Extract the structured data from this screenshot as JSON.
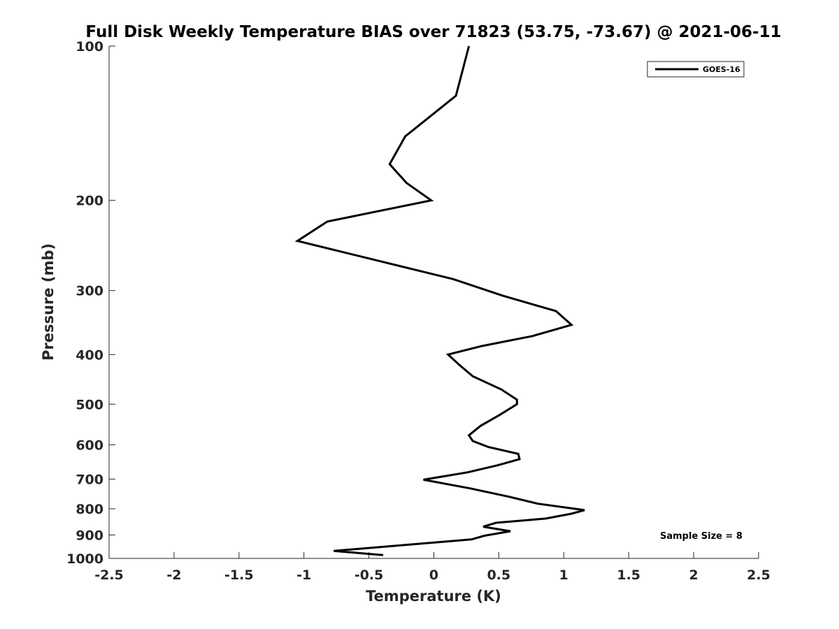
{
  "chart_data": {
    "type": "line",
    "title": "Full Disk Weekly Temperature BIAS over 71823 (53.75, -73.67) @ 2021-06-11",
    "xlabel": "Temperature (K)",
    "ylabel": "Pressure (mb)",
    "xlim": [
      -2.5,
      2.5
    ],
    "ylim": [
      100,
      1000
    ],
    "yscale": "log",
    "y_reversed": true,
    "x_ticks": [
      -2.5,
      -2,
      -1.5,
      -1,
      -0.5,
      0,
      0.5,
      1,
      1.5,
      2,
      2.5
    ],
    "x_tick_labels": [
      "-2.5",
      "-2",
      "-1.5",
      "-1",
      "-0.5",
      "0",
      "0.5",
      "1",
      "1.5",
      "2",
      "2.5"
    ],
    "y_ticks": [
      100,
      200,
      300,
      400,
      500,
      600,
      700,
      800,
      900,
      1000
    ],
    "y_tick_labels": [
      "100",
      "200",
      "300",
      "400",
      "500",
      "600",
      "700",
      "800",
      "900",
      "1000"
    ],
    "grid": false,
    "legend_position": "top-right",
    "series": [
      {
        "name": "GOES-16",
        "color": "#000000",
        "points": [
          {
            "x": 0.27,
            "y": 100
          },
          {
            "x": 0.17,
            "y": 125
          },
          {
            "x": -0.22,
            "y": 150
          },
          {
            "x": -0.34,
            "y": 170
          },
          {
            "x": -0.21,
            "y": 185
          },
          {
            "x": -0.02,
            "y": 200
          },
          {
            "x": -0.82,
            "y": 220
          },
          {
            "x": -1.05,
            "y": 240
          },
          {
            "x": -0.36,
            "y": 265
          },
          {
            "x": 0.15,
            "y": 285
          },
          {
            "x": 0.53,
            "y": 307
          },
          {
            "x": 0.94,
            "y": 329
          },
          {
            "x": 1.06,
            "y": 350
          },
          {
            "x": 0.76,
            "y": 368
          },
          {
            "x": 0.37,
            "y": 385
          },
          {
            "x": 0.11,
            "y": 400
          },
          {
            "x": 0.2,
            "y": 420
          },
          {
            "x": 0.3,
            "y": 441
          },
          {
            "x": 0.52,
            "y": 468
          },
          {
            "x": 0.64,
            "y": 490
          },
          {
            "x": 0.64,
            "y": 500
          },
          {
            "x": 0.51,
            "y": 524
          },
          {
            "x": 0.36,
            "y": 551
          },
          {
            "x": 0.27,
            "y": 575
          },
          {
            "x": 0.3,
            "y": 590
          },
          {
            "x": 0.42,
            "y": 606
          },
          {
            "x": 0.65,
            "y": 625
          },
          {
            "x": 0.66,
            "y": 640
          },
          {
            "x": 0.49,
            "y": 658
          },
          {
            "x": 0.26,
            "y": 679
          },
          {
            "x": -0.08,
            "y": 702
          },
          {
            "x": 0.28,
            "y": 730
          },
          {
            "x": 0.58,
            "y": 758
          },
          {
            "x": 0.8,
            "y": 782
          },
          {
            "x": 1.16,
            "y": 805
          },
          {
            "x": 1.06,
            "y": 818
          },
          {
            "x": 0.86,
            "y": 836
          },
          {
            "x": 0.48,
            "y": 852
          },
          {
            "x": 0.38,
            "y": 867
          },
          {
            "x": 0.59,
            "y": 885
          },
          {
            "x": 0.39,
            "y": 903
          },
          {
            "x": 0.29,
            "y": 918
          },
          {
            "x": -0.77,
            "y": 967
          },
          {
            "x": -0.39,
            "y": 985
          }
        ]
      }
    ],
    "annotations": [
      {
        "text": "Sample Size = 8",
        "position": "bottom-right"
      }
    ]
  }
}
